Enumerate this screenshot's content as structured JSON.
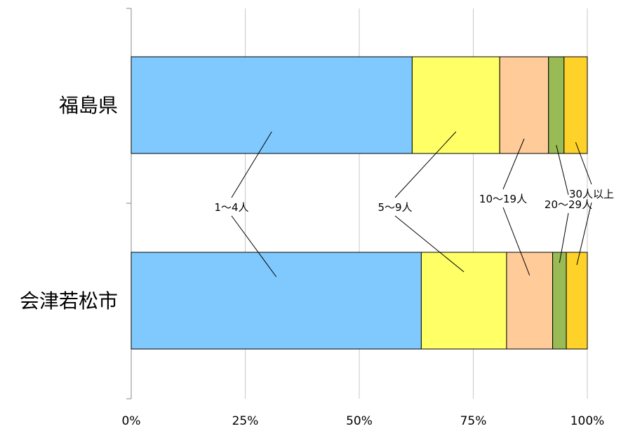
{
  "chart_data": {
    "type": "bar",
    "orientation": "horizontal",
    "stacked": "percent",
    "categories": [
      "福島県",
      "会津若松市"
    ],
    "series": [
      {
        "name": "1～4人",
        "color": "#80C9FF",
        "values": [
          61.6,
          63.6
        ]
      },
      {
        "name": "5～9人",
        "color": "#FFFF66",
        "values": [
          19.2,
          18.7
        ]
      },
      {
        "name": "10～19人",
        "color": "#FFCC99",
        "values": [
          10.7,
          10.1
        ]
      },
      {
        "name": "20～29人",
        "color": "#99BB55",
        "values": [
          3.4,
          3.0
        ]
      },
      {
        "name": "30人以上",
        "color": "#FFD22A",
        "values": [
          5.1,
          4.6
        ]
      }
    ],
    "x_ticks": [
      "0%",
      "25%",
      "50%",
      "75%",
      "100%"
    ],
    "xlim": [
      0,
      100
    ],
    "grid": "vertical",
    "legend": "leader-line labels between bars"
  }
}
